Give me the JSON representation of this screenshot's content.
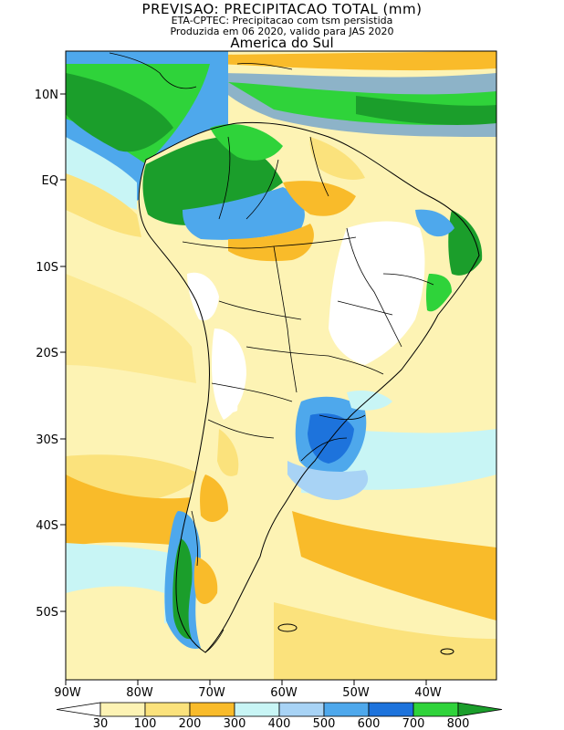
{
  "title": {
    "line1": "PREVISAO: PRECIPITACAO TOTAL (mm)",
    "line2": "ETA-CPTEC: Precipitacao com tsm persistida",
    "line3": "Produzida em 06 2020, valido para JAS 2020",
    "line4": "America do Sul"
  },
  "axes": {
    "lat_labels": [
      "10N",
      "EQ",
      "10S",
      "20S",
      "30S",
      "40S",
      "50S"
    ],
    "lon_labels": [
      "90W",
      "80W",
      "70W",
      "60W",
      "50W",
      "40W"
    ]
  },
  "colorbar": {
    "labels": [
      "30",
      "100",
      "200",
      "300",
      "400",
      "500",
      "600",
      "700",
      "800"
    ],
    "colors": [
      "#ffffff",
      "#fdf3b4",
      "#fbe27c",
      "#f9bb2a",
      "#c8f5f5",
      "#a8d3f5",
      "#4ea8ec",
      "#1d73dc",
      "#2fd33a",
      "#1b9e2b"
    ]
  },
  "palette": {
    "ocean_default": "#fdf3b4",
    "dry": "#ffffff",
    "green": "#1b9e2b"
  }
}
